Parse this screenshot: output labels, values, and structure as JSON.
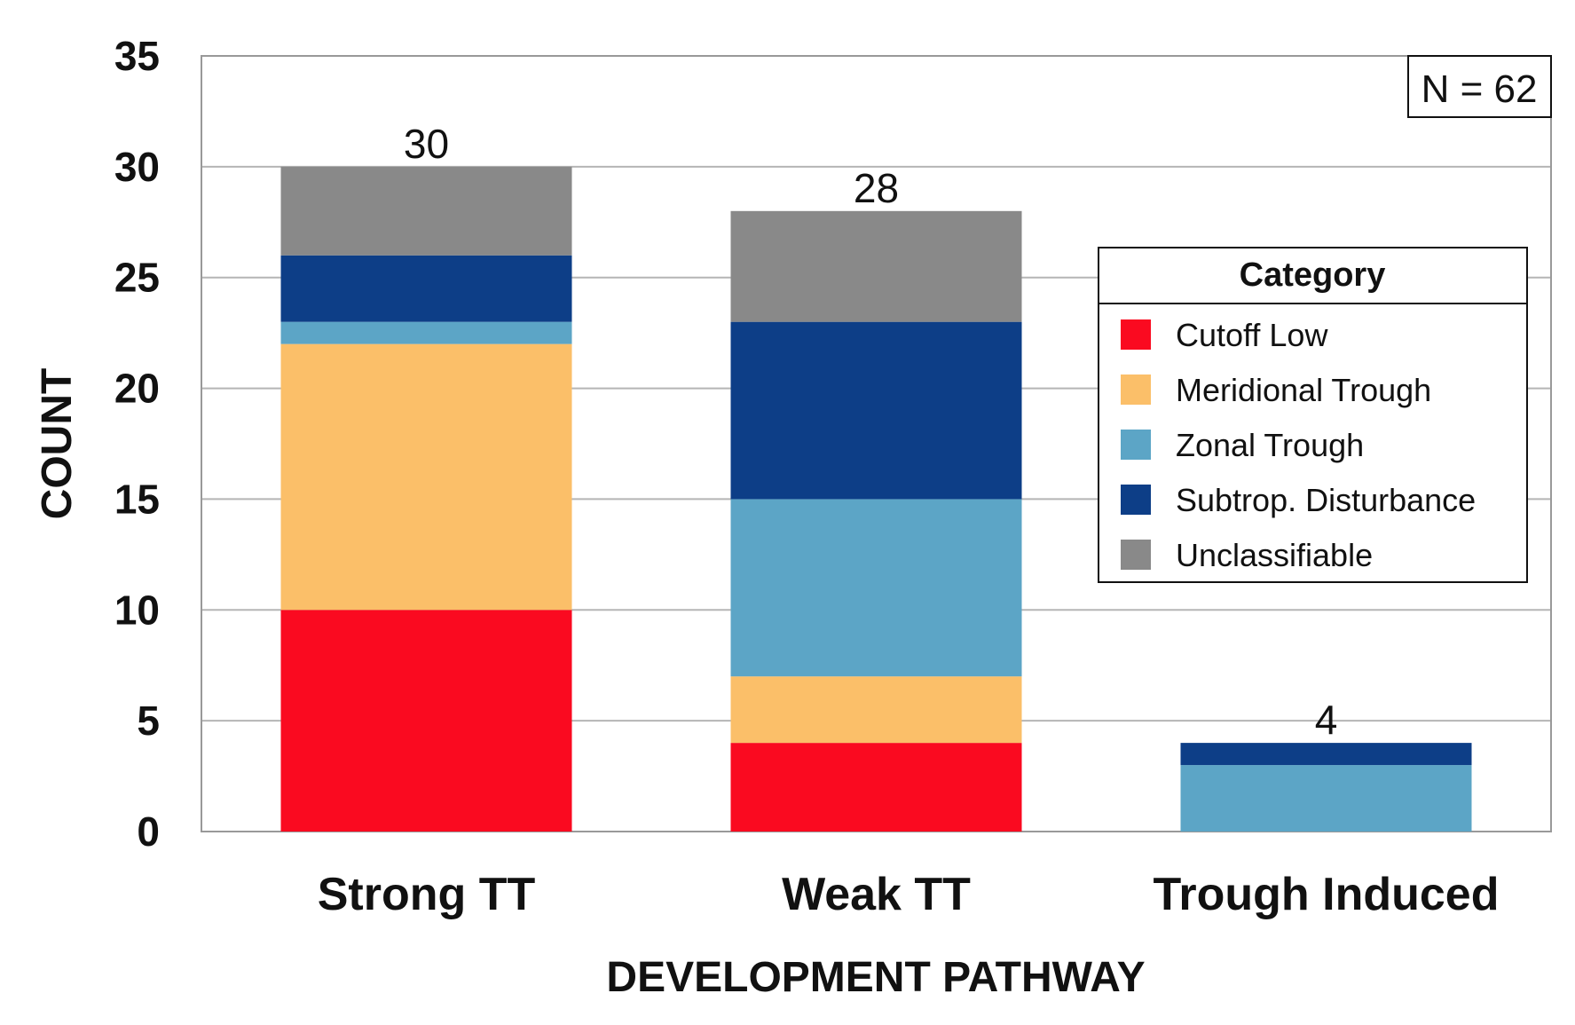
{
  "chart_data": {
    "type": "bar",
    "stacked": true,
    "categories": [
      "Strong TT",
      "Weak TT",
      "Trough Induced"
    ],
    "series": [
      {
        "name": "Cutoff Low",
        "color": "#fa0a20",
        "values": [
          10,
          4,
          0
        ]
      },
      {
        "name": "Meridional Trough",
        "color": "#fbbf69",
        "values": [
          12,
          3,
          0
        ]
      },
      {
        "name": "Zonal Trough",
        "color": "#5ca5c6",
        "values": [
          1,
          8,
          3
        ]
      },
      {
        "name": "Subtrop. Disturbance",
        "color": "#0d3e87",
        "values": [
          3,
          8,
          1
        ]
      },
      {
        "name": "Unclassifiable",
        "color": "#898989",
        "values": [
          4,
          5,
          0
        ]
      }
    ],
    "totals": [
      "30",
      "28",
      "4"
    ],
    "xlabel": "DEVELOPMENT PATHWAY",
    "ylabel": "COUNT",
    "ylim": [
      0,
      35
    ],
    "yticks": [
      "0",
      "5",
      "10",
      "15",
      "20",
      "25",
      "30",
      "35"
    ],
    "grid": true,
    "legend": {
      "title": "Category",
      "placement": "right"
    },
    "annotation": "N = 62"
  }
}
